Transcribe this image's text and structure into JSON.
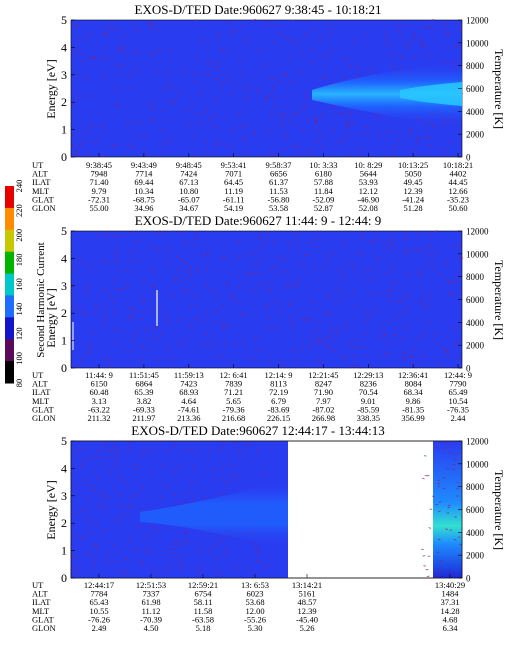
{
  "chart_data": [
    {
      "type": "heatmap",
      "title": "EXOS-D/TED   Date:960627  9:38:45 - 10:18:21",
      "ylabel": "Energy [eV]",
      "ylabel_right": "Temperature [K]",
      "ylim": [
        0,
        5
      ],
      "ylim_right": [
        0,
        12000
      ],
      "y_ticks": [
        "0",
        "1",
        "2",
        "3",
        "4",
        "5"
      ],
      "y_ticks_right": [
        "0",
        "2000",
        "4000",
        "6000",
        "8000",
        "10000",
        "12000"
      ],
      "row_labels": [
        "UT",
        "ALT",
        "ILAT",
        "MLT",
        "GLAT",
        "GLON"
      ],
      "columns": [
        [
          "9:38:45",
          "7948",
          "71.40",
          "9.79",
          "-72.31",
          "55.00"
        ],
        [
          "9:43:49",
          "7714",
          "69.44",
          "10.34",
          "-68.75",
          "34.96"
        ],
        [
          "9:48:45",
          "7424",
          "67.13",
          "10.80",
          "-65.07",
          "34.67"
        ],
        [
          "9:53:41",
          "7071",
          "64.45",
          "11.19",
          "-61.11",
          "54.19"
        ],
        [
          "9:58:37",
          "6656",
          "61.37",
          "11.53",
          "-56.80",
          "53.58"
        ],
        [
          "10: 3:33",
          "6180",
          "57.88",
          "11.84",
          "-52.09",
          "52.87"
        ],
        [
          "10: 8:29",
          "5644",
          "53.93",
          "12.12",
          "-46.90",
          "52.08"
        ],
        [
          "10:13:25",
          "5050",
          "49.45",
          "12.39",
          "-41.24",
          "51.28"
        ],
        [
          "10:18:21",
          "4402",
          "44.45",
          "12.66",
          "-35.23",
          "50.60"
        ]
      ],
      "features": [
        {
          "x_start": 0.62,
          "x_end": 1.0,
          "energy_center": 2.3,
          "energy_halfwidth": 0.65,
          "intensity": "light-blue"
        }
      ]
    },
    {
      "type": "heatmap",
      "title": "EXOS-D/TED   Date:960627  11:44: 9 - 12:44: 9",
      "ylabel": "Energy [eV]",
      "ylabel_right": "Temperature [K]",
      "ylim": [
        0,
        5
      ],
      "ylim_right": [
        0,
        12000
      ],
      "y_ticks": [
        "0",
        "1",
        "2",
        "3",
        "4",
        "5"
      ],
      "y_ticks_right": [
        "0",
        "2000",
        "4000",
        "6000",
        "8000",
        "10000",
        "12000"
      ],
      "row_labels": [
        "UT",
        "ALT",
        "ILAT",
        "MLT",
        "GLAT",
        "GLON"
      ],
      "columns": [
        [
          "11:44: 9",
          "6150",
          "60.48",
          "3.13",
          "-63.22",
          "211.32"
        ],
        [
          "11:51:45",
          "6864",
          "65.39",
          "3.82",
          "-69.33",
          "211.97"
        ],
        [
          "11:59:13",
          "7423",
          "68.93",
          "4.64",
          "-74.61",
          "213.36"
        ],
        [
          "12: 6:41",
          "7839",
          "71.21",
          "5.65",
          "-79.36",
          "216.68"
        ],
        [
          "12:14: 9",
          "8113",
          "72.19",
          "6.79",
          "-83.69",
          "226.15"
        ],
        [
          "12:21:45",
          "8247",
          "71.90",
          "7.97",
          "-87.02",
          "266.98"
        ],
        [
          "12:29:13",
          "8236",
          "70.54",
          "9.01",
          "-85.59",
          "338.35"
        ],
        [
          "12:36:41",
          "8084",
          "68.34",
          "9.86",
          "-81.35",
          "356.99"
        ],
        [
          "12:44: 9",
          "7790",
          "65.49",
          "10.54",
          "-76.35",
          "2.44"
        ]
      ]
    },
    {
      "type": "heatmap",
      "title": "EXOS-D/TED   Date:960627  12:44:17 - 13:44:13",
      "ylabel": "Energy [eV]",
      "ylabel_right": "Temperature [K]",
      "ylim": [
        0,
        5
      ],
      "ylim_right": [
        0,
        12000
      ],
      "y_ticks": [
        "0",
        "1",
        "2",
        "3",
        "4",
        "5"
      ],
      "y_ticks_right": [
        "0",
        "2000",
        "4000",
        "6000",
        "8000",
        "10000",
        "12000"
      ],
      "row_labels": [
        "UT",
        "ALT",
        "ILAT",
        "MLT",
        "GLAT",
        "GLON"
      ],
      "columns": [
        [
          "12:44:17",
          "7784",
          "65.43",
          "10.55",
          "-76.26",
          "2.49"
        ],
        [
          "12:51:53",
          "7337",
          "61.98",
          "11.12",
          "-70.39",
          "4.50"
        ],
        [
          "12:59:21",
          "6754",
          "58.11",
          "11.58",
          "-63.58",
          "5.18"
        ],
        [
          "13: 6:53",
          "6023",
          "53.68",
          "12.00",
          "-55.26",
          "5.30"
        ],
        [
          "13:14:21",
          "5161",
          "48.57",
          "12.39",
          "-45.40",
          "5.26"
        ],
        [
          "13:40:29",
          "1484",
          "37.31",
          "14.28",
          "4.68",
          "6.34"
        ]
      ],
      "data_gap": [
        0.495,
        0.895
      ]
    }
  ],
  "colorbar": {
    "label": "Second Harmonic Current",
    "ticks": [
      "80",
      "100",
      "120",
      "140",
      "160",
      "180",
      "200",
      "220",
      "240"
    ],
    "colors": [
      "#000000",
      "#5a0a5a",
      "#1414c8",
      "#1e6eff",
      "#00c8c8",
      "#00b400",
      "#c8c800",
      "#ff8c00",
      "#e60000"
    ]
  }
}
